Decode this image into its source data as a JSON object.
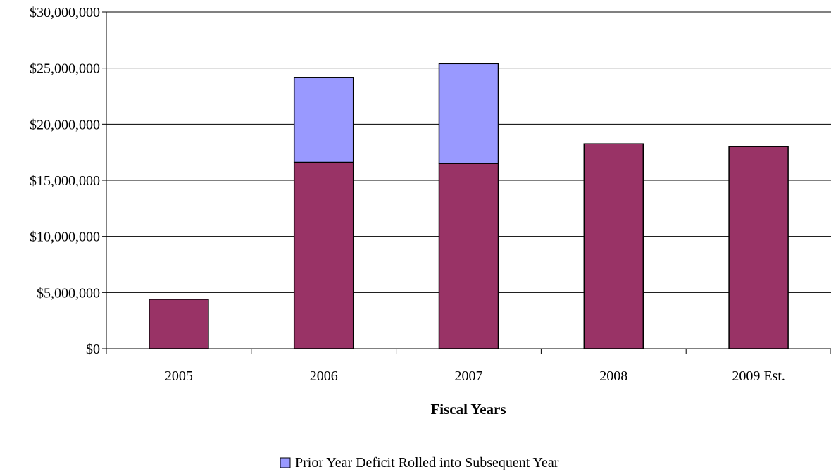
{
  "chart_data": {
    "type": "bar",
    "stacked": true,
    "categories": [
      "2005",
      "2006",
      "2007",
      "2008",
      "2009 Est."
    ],
    "series": [
      {
        "values": [
          4400000,
          16600000,
          16500000,
          18250000,
          18000000
        ],
        "color": "#993366"
      },
      {
        "name": "Prior Year Deficit Rolled into Subsequent Year",
        "values": [
          0,
          7550000,
          8900000,
          0,
          0
        ],
        "color": "#9999FF"
      }
    ],
    "title": "",
    "xlabel": "Fiscal Years",
    "ylabel": "",
    "ylim": [
      0,
      30000000
    ],
    "yticks": [
      0,
      5000000,
      10000000,
      15000000,
      20000000,
      25000000,
      30000000
    ],
    "ytick_labels": [
      "$0",
      "$5,000,000",
      "$10,000,000",
      "$15,000,000",
      "$20,000,000",
      "$25,000,000",
      "$30,000,000"
    ],
    "grid": true,
    "legend_position": "bottom"
  }
}
